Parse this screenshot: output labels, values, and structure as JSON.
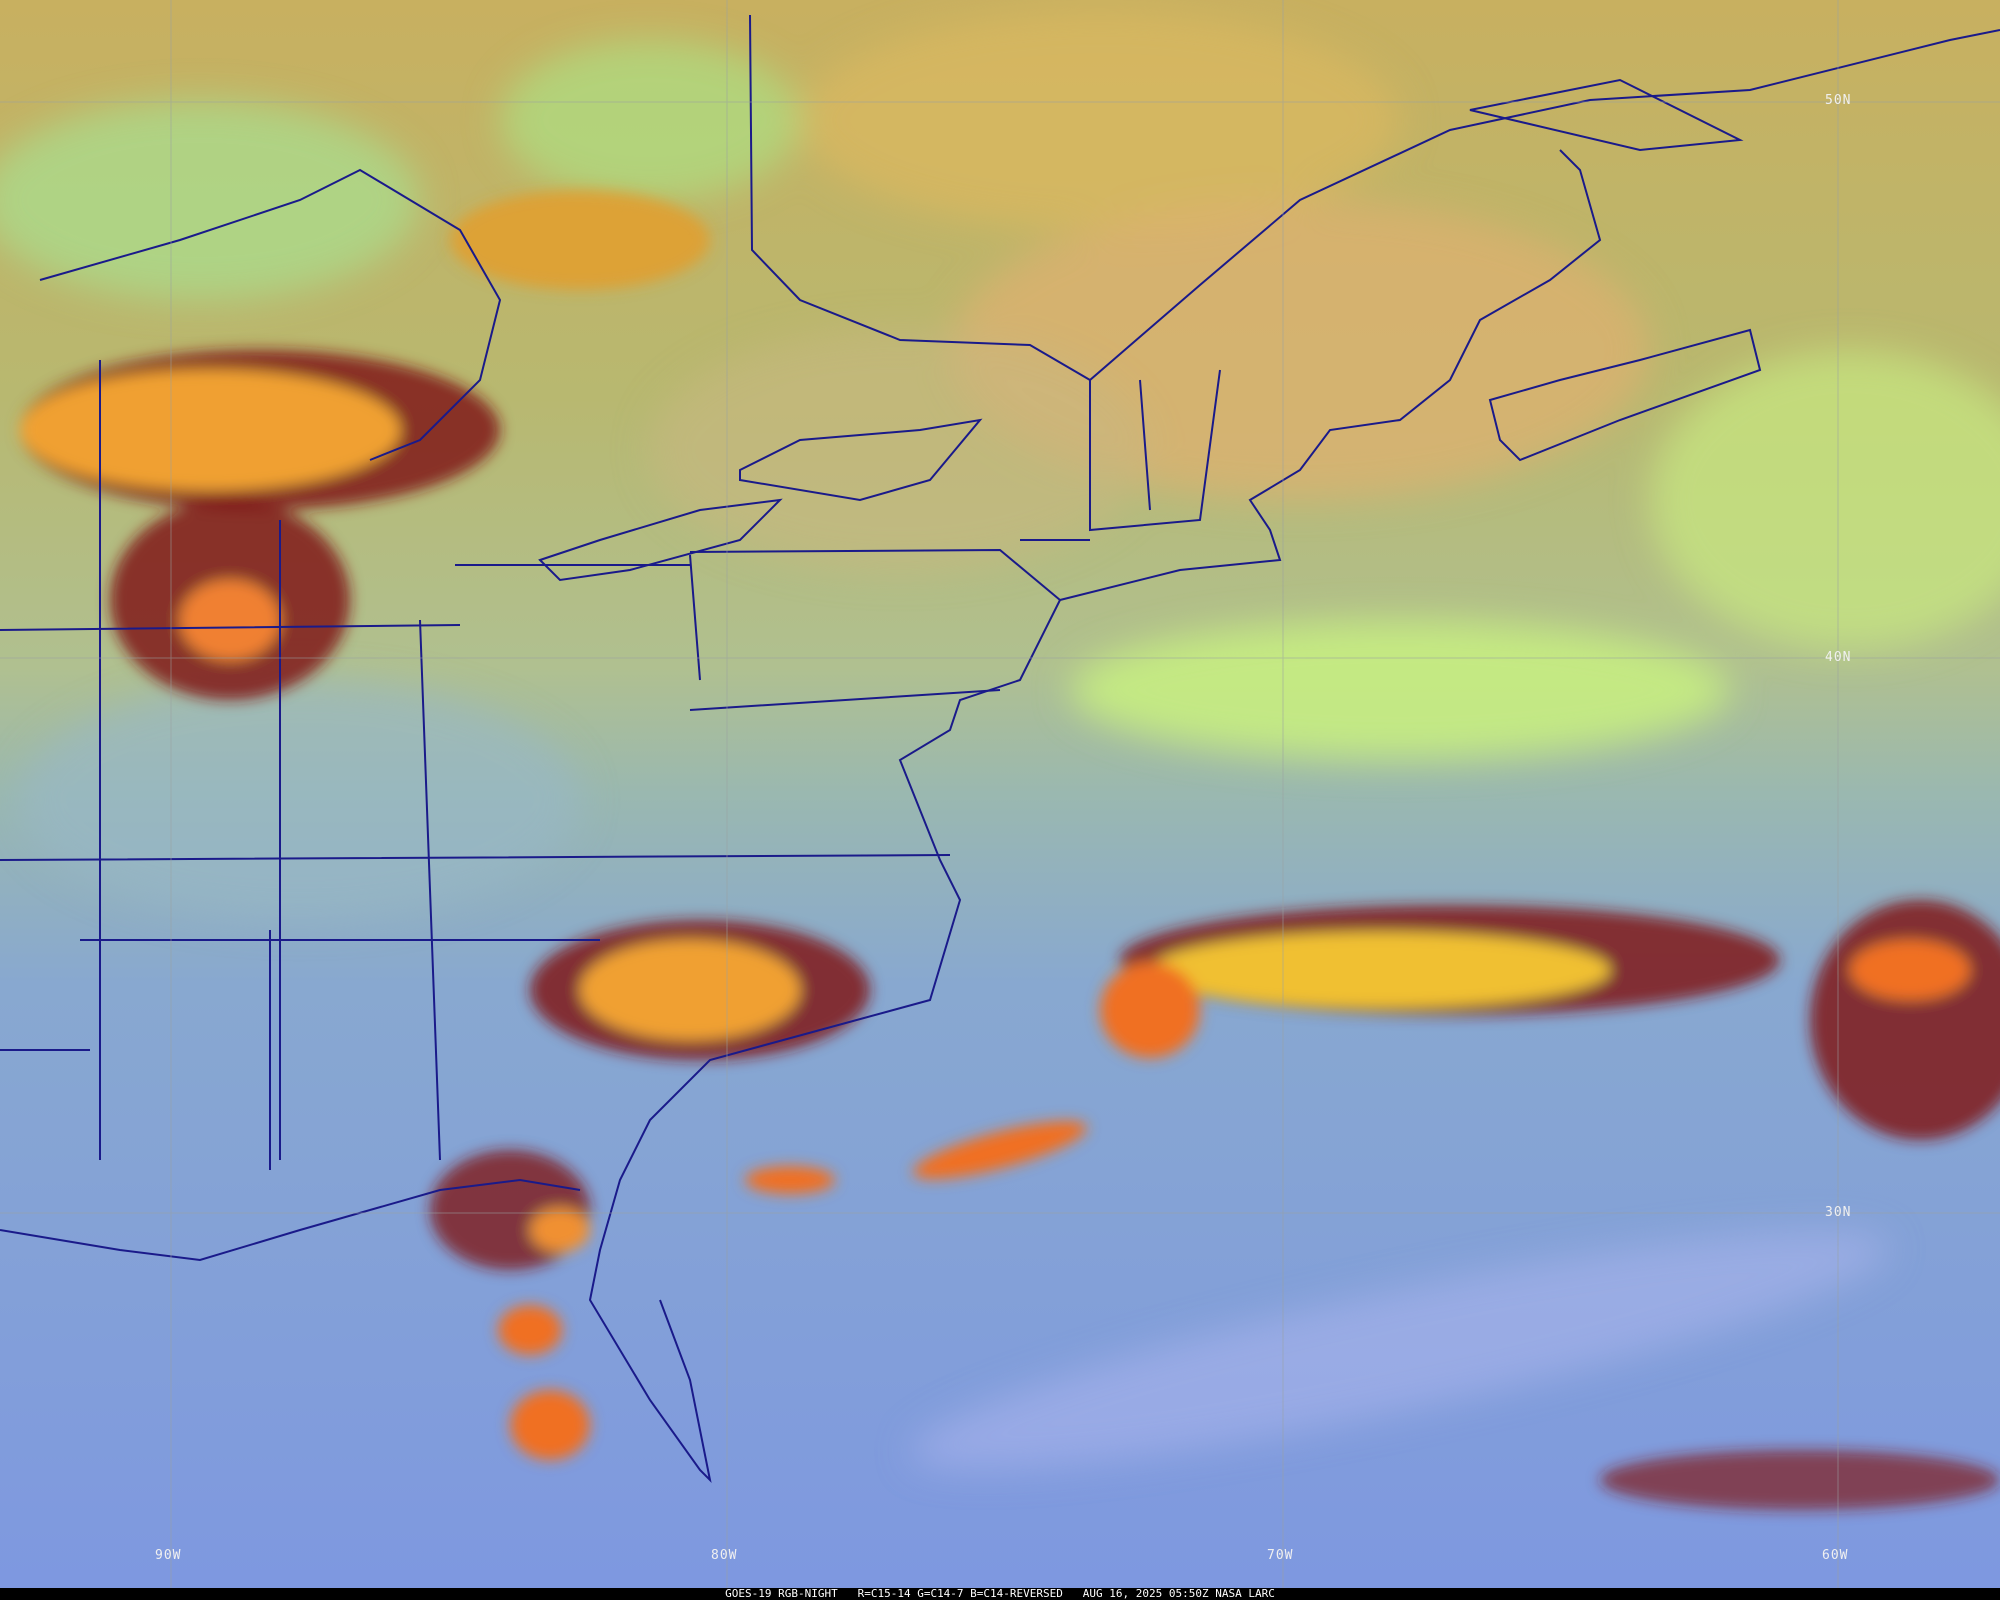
{
  "caption": {
    "satellite": "GOES-19 RGB-NIGHT",
    "channels": "R=C15-14 G=C14-7 B=C14-REVERSED",
    "timestamp": "AUG 16, 2025 05:50Z",
    "credit": "NASA LARC"
  },
  "grid": {
    "latitudes": [
      "50N",
      "40N",
      "30N"
    ],
    "longitudes": [
      "90W",
      "80W",
      "70W",
      "60W"
    ]
  },
  "colors": {
    "ocean_clear": "#7f9ad8",
    "land_clear": "#a8c8a0",
    "low_cloud": "#c8e878",
    "high_cloud_warm": "#f0b040",
    "deep_convection": "#f07020",
    "cloud_edge": "#801818",
    "boundaries": "#1a1a8a",
    "gridline": "#9aa0a0"
  }
}
